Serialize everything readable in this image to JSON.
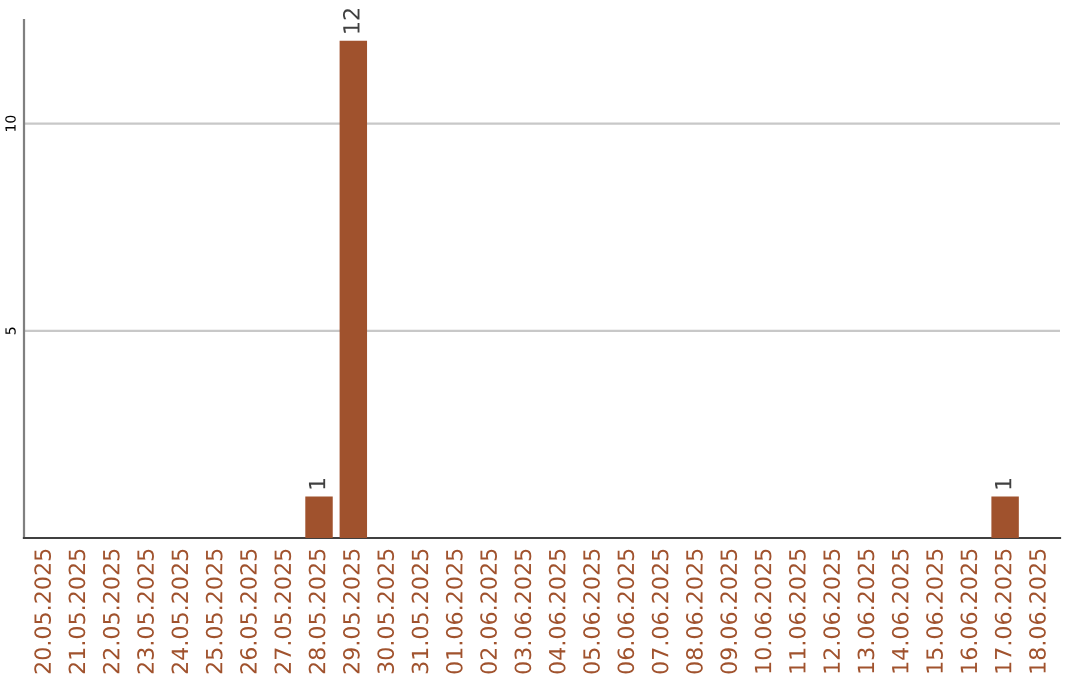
{
  "chart_data": {
    "type": "bar",
    "categories": [
      "20.05.2025",
      "21.05.2025",
      "22.05.2025",
      "23.05.2025",
      "24.05.2025",
      "25.05.2025",
      "26.05.2025",
      "27.05.2025",
      "28.05.2025",
      "29.05.2025",
      "30.05.2025",
      "31.05.2025",
      "01.06.2025",
      "02.06.2025",
      "03.06.2025",
      "04.06.2025",
      "05.06.2025",
      "06.06.2025",
      "07.06.2025",
      "08.06.2025",
      "09.06.2025",
      "10.06.2025",
      "11.06.2025",
      "12.06.2025",
      "13.06.2025",
      "14.06.2025",
      "15.06.2025",
      "16.06.2025",
      "17.06.2025",
      "18.06.2025"
    ],
    "values": [
      0,
      0,
      0,
      0,
      0,
      0,
      0,
      0,
      1,
      12,
      0,
      0,
      0,
      0,
      0,
      0,
      0,
      0,
      0,
      0,
      0,
      0,
      0,
      0,
      0,
      0,
      0,
      0,
      1,
      0
    ],
    "value_labels": [
      null,
      null,
      null,
      null,
      null,
      null,
      null,
      null,
      "1",
      "12",
      null,
      null,
      null,
      null,
      null,
      null,
      null,
      null,
      null,
      null,
      null,
      null,
      null,
      null,
      null,
      null,
      null,
      null,
      "1",
      null
    ],
    "color": "#a0522d",
    "ylim": [
      0,
      12.5
    ],
    "yticks": [
      5,
      10
    ],
    "grid": "y",
    "legend": false
  }
}
